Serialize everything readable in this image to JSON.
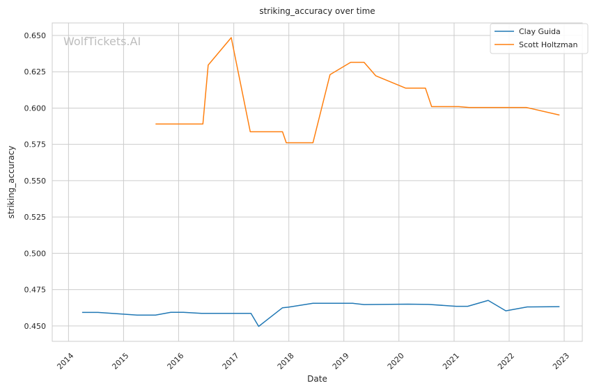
{
  "chart_data": {
    "type": "line",
    "title": "striking_accuracy over time",
    "xlabel": "Date",
    "ylabel": "striking_accuracy",
    "watermark": "WolfTickets.AI",
    "xlim": [
      "2013-09-15",
      "2023-05-01"
    ],
    "ylim": [
      0.4394,
      0.6586
    ],
    "x_ticks": [
      "2014",
      "2015",
      "2016",
      "2017",
      "2018",
      "2019",
      "2020",
      "2021",
      "2022",
      "2023"
    ],
    "y_ticks": [
      "0.450",
      "0.475",
      "0.500",
      "0.525",
      "0.550",
      "0.575",
      "0.600",
      "0.625",
      "0.650"
    ],
    "grid": true,
    "legend_position": "top-right",
    "series": [
      {
        "name": "Clay Guida",
        "color": "#1f77b4",
        "points": [
          {
            "x": "2014-04-01",
            "y": 0.4593
          },
          {
            "x": "2014-07-15",
            "y": 0.4593
          },
          {
            "x": "2015-04-01",
            "y": 0.4575
          },
          {
            "x": "2015-08-01",
            "y": 0.4575
          },
          {
            "x": "2015-11-10",
            "y": 0.4594
          },
          {
            "x": "2016-02-01",
            "y": 0.4594
          },
          {
            "x": "2016-06-01",
            "y": 0.4587
          },
          {
            "x": "2017-04-25",
            "y": 0.4587
          },
          {
            "x": "2017-06-15",
            "y": 0.4497
          },
          {
            "x": "2017-11-20",
            "y": 0.4625
          },
          {
            "x": "2018-01-01",
            "y": 0.463
          },
          {
            "x": "2018-06-10",
            "y": 0.4656
          },
          {
            "x": "2019-03-01",
            "y": 0.4656
          },
          {
            "x": "2019-05-15",
            "y": 0.4647
          },
          {
            "x": "2020-03-01",
            "y": 0.465
          },
          {
            "x": "2020-07-15",
            "y": 0.4648
          },
          {
            "x": "2021-01-15",
            "y": 0.4635
          },
          {
            "x": "2021-04-01",
            "y": 0.4635
          },
          {
            "x": "2021-08-15",
            "y": 0.4676
          },
          {
            "x": "2021-12-10",
            "y": 0.4604
          },
          {
            "x": "2022-05-01",
            "y": 0.4631
          },
          {
            "x": "2022-12-01",
            "y": 0.4633
          }
        ]
      },
      {
        "name": "Scott Holtzman",
        "color": "#ff7f0e",
        "points": [
          {
            "x": "2015-08-01",
            "y": 0.589
          },
          {
            "x": "2016-06-10",
            "y": 0.589
          },
          {
            "x": "2016-07-15",
            "y": 0.6296
          },
          {
            "x": "2016-12-15",
            "y": 0.6485
          },
          {
            "x": "2017-04-20",
            "y": 0.5837
          },
          {
            "x": "2017-11-20",
            "y": 0.5837
          },
          {
            "x": "2017-12-15",
            "y": 0.5761
          },
          {
            "x": "2018-06-10",
            "y": 0.5761
          },
          {
            "x": "2018-10-01",
            "y": 0.623
          },
          {
            "x": "2019-02-15",
            "y": 0.6315
          },
          {
            "x": "2019-05-15",
            "y": 0.6315
          },
          {
            "x": "2019-08-01",
            "y": 0.6222
          },
          {
            "x": "2020-02-15",
            "y": 0.6137
          },
          {
            "x": "2020-06-25",
            "y": 0.6137
          },
          {
            "x": "2020-08-05",
            "y": 0.601
          },
          {
            "x": "2021-02-01",
            "y": 0.601
          },
          {
            "x": "2021-04-10",
            "y": 0.6004
          },
          {
            "x": "2022-04-25",
            "y": 0.6004
          },
          {
            "x": "2022-12-01",
            "y": 0.5952
          }
        ]
      }
    ]
  }
}
